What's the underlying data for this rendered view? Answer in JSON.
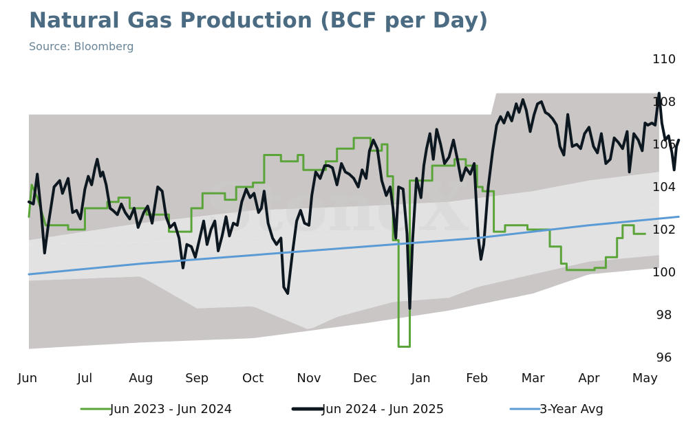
{
  "header": {
    "title": "Natural Gas Production (BCF per Day)",
    "subtitle": "Source: Bloomberg"
  },
  "colors": {
    "series_2023": "#5aa43a",
    "series_2024": "#0d1720",
    "avg": "#5b9bd5",
    "band_outer": "#c9c6c5",
    "band_inner": "#e3e2e2",
    "watermark": "#d5d5d5"
  },
  "watermark": "StoneX",
  "chart_data": {
    "type": "line",
    "title": "Natural Gas Production (BCF per Day)",
    "subtitle": "Source: Bloomberg",
    "y_axis_side": "right",
    "ylim": [
      96,
      110
    ],
    "yticks": [
      96,
      98,
      100,
      102,
      104,
      106,
      108,
      110
    ],
    "x_ticks": [
      "Jun",
      "Jul",
      "Aug",
      "Sep",
      "Oct",
      "Nov",
      "Dec",
      "Jan",
      "Feb",
      "Mar",
      "Apr",
      "May"
    ],
    "x_range": [
      0,
      11.25
    ],
    "legend_position": "bottom",
    "grid": false,
    "legend": [
      "Jun 2023 - Jun 2024",
      "Jun 2024 - Jun 2025",
      "3-Year Avg"
    ],
    "bands": {
      "outer_upper": [
        [
          0,
          107.4
        ],
        [
          8.3,
          107.4
        ],
        [
          8.3,
          108.4
        ],
        [
          11.25,
          108.4
        ]
      ],
      "inner_upper": [
        [
          0,
          101.5
        ],
        [
          2,
          102.3
        ],
        [
          4,
          102.9
        ],
        [
          6,
          103.1
        ],
        [
          7.5,
          103.3
        ],
        [
          9,
          103.8
        ],
        [
          10,
          104.3
        ],
        [
          11.25,
          104.7
        ]
      ],
      "inner_lower": [
        [
          0,
          101.3
        ],
        [
          2,
          101.4
        ],
        [
          4,
          101.6
        ],
        [
          6,
          101.8
        ],
        [
          7.5,
          102.0
        ],
        [
          9,
          102.4
        ],
        [
          10,
          102.8
        ],
        [
          11.25,
          103.0
        ]
      ],
      "outer_lower": [
        [
          0,
          99.6
        ],
        [
          2,
          99.8
        ],
        [
          3,
          98.3
        ],
        [
          4,
          98.4
        ],
        [
          5,
          97.3
        ],
        [
          5.5,
          97.9
        ],
        [
          6.5,
          98.6
        ],
        [
          7.5,
          98.8
        ],
        [
          8,
          99.3
        ],
        [
          8.5,
          99.6
        ],
        [
          10,
          100.5
        ],
        [
          11.25,
          100.8
        ]
      ],
      "bottom": [
        [
          0,
          96.4
        ],
        [
          2,
          96.7
        ],
        [
          4,
          96.9
        ],
        [
          6,
          97.6
        ],
        [
          7.5,
          98.2
        ],
        [
          9,
          99.0
        ],
        [
          10,
          99.9
        ],
        [
          11.25,
          100.2
        ]
      ]
    },
    "series": [
      {
        "name": "Jun 2023 - Jun 2024",
        "color": "#5aa43a",
        "points": [
          [
            0,
            102.6
          ],
          [
            0.05,
            104.1
          ],
          [
            0.15,
            103.5
          ],
          [
            0.3,
            102.2
          ],
          [
            0.7,
            102.2
          ],
          [
            0.7,
            102.0
          ],
          [
            1,
            102.0
          ],
          [
            1,
            103.0
          ],
          [
            1.4,
            103.0
          ],
          [
            1.4,
            103.3
          ],
          [
            1.6,
            103.3
          ],
          [
            1.6,
            103.5
          ],
          [
            1.8,
            103.5
          ],
          [
            1.8,
            103.0
          ],
          [
            2.1,
            103.0
          ],
          [
            2.1,
            102.7
          ],
          [
            2.5,
            102.7
          ],
          [
            2.5,
            101.9
          ],
          [
            2.9,
            101.9
          ],
          [
            2.9,
            103.0
          ],
          [
            3.1,
            103.0
          ],
          [
            3.1,
            103.7
          ],
          [
            3.5,
            103.7
          ],
          [
            3.5,
            103.4
          ],
          [
            3.7,
            103.4
          ],
          [
            3.7,
            104.0
          ],
          [
            4,
            104.0
          ],
          [
            4,
            104.2
          ],
          [
            4.2,
            104.2
          ],
          [
            4.2,
            105.5
          ],
          [
            4.5,
            105.5
          ],
          [
            4.5,
            105.2
          ],
          [
            4.8,
            105.2
          ],
          [
            4.8,
            105.5
          ],
          [
            4.9,
            105.5
          ],
          [
            4.9,
            104.8
          ],
          [
            5.3,
            104.8
          ],
          [
            5.3,
            105.2
          ],
          [
            5.5,
            105.2
          ],
          [
            5.5,
            105.8
          ],
          [
            5.8,
            105.8
          ],
          [
            5.8,
            106.3
          ],
          [
            6.1,
            106.3
          ],
          [
            6.1,
            105.7
          ],
          [
            6.3,
            105.7
          ],
          [
            6.3,
            106.0
          ],
          [
            6.4,
            106.0
          ],
          [
            6.4,
            104.5
          ],
          [
            6.5,
            104.5
          ],
          [
            6.5,
            101.5
          ],
          [
            6.6,
            101.5
          ],
          [
            6.6,
            96.5
          ],
          [
            6.8,
            96.5
          ],
          [
            6.8,
            104.3
          ],
          [
            7.2,
            104.3
          ],
          [
            7.2,
            105.0
          ],
          [
            7.6,
            105.0
          ],
          [
            7.6,
            105.3
          ],
          [
            7.8,
            105.3
          ],
          [
            7.8,
            105.0
          ],
          [
            8,
            105.0
          ],
          [
            8,
            104.0
          ],
          [
            8.1,
            104.0
          ],
          [
            8.1,
            103.8
          ],
          [
            8.3,
            103.8
          ],
          [
            8.3,
            101.9
          ],
          [
            8.5,
            101.9
          ],
          [
            8.5,
            102.2
          ],
          [
            8.9,
            102.2
          ],
          [
            8.9,
            102.0
          ],
          [
            9.3,
            102.0
          ],
          [
            9.3,
            101.2
          ],
          [
            9.5,
            101.2
          ],
          [
            9.5,
            100.4
          ],
          [
            9.6,
            100.4
          ],
          [
            9.6,
            100.1
          ],
          [
            10.1,
            100.1
          ],
          [
            10.1,
            100.2
          ],
          [
            10.3,
            100.2
          ],
          [
            10.3,
            100.7
          ],
          [
            10.5,
            100.7
          ],
          [
            10.5,
            101.6
          ],
          [
            10.6,
            101.6
          ],
          [
            10.6,
            102.2
          ],
          [
            10.8,
            102.2
          ],
          [
            10.8,
            101.8
          ],
          [
            11,
            101.8
          ]
        ]
      },
      {
        "name": "Jun 2024 - Jun 2025",
        "color": "#0d1720",
        "points": [
          [
            0,
            103.3
          ],
          [
            0.08,
            103.2
          ],
          [
            0.15,
            104.6
          ],
          [
            0.22,
            102.8
          ],
          [
            0.28,
            100.9
          ],
          [
            0.35,
            102.3
          ],
          [
            0.45,
            104.0
          ],
          [
            0.55,
            104.3
          ],
          [
            0.6,
            103.7
          ],
          [
            0.7,
            104.4
          ],
          [
            0.78,
            102.8
          ],
          [
            0.85,
            102.9
          ],
          [
            0.92,
            102.5
          ],
          [
            1,
            103.9
          ],
          [
            1.06,
            104.5
          ],
          [
            1.12,
            104.1
          ],
          [
            1.18,
            104.9
          ],
          [
            1.22,
            105.3
          ],
          [
            1.28,
            104.5
          ],
          [
            1.32,
            104.7
          ],
          [
            1.38,
            104.1
          ],
          [
            1.45,
            103.0
          ],
          [
            1.5,
            102.9
          ],
          [
            1.58,
            102.7
          ],
          [
            1.65,
            103.2
          ],
          [
            1.72,
            102.8
          ],
          [
            1.8,
            102.5
          ],
          [
            1.88,
            103.0
          ],
          [
            1.95,
            102.1
          ],
          [
            2.05,
            102.8
          ],
          [
            2.12,
            103.1
          ],
          [
            2.2,
            102.3
          ],
          [
            2.3,
            104.0
          ],
          [
            2.38,
            103.8
          ],
          [
            2.45,
            102.6
          ],
          [
            2.52,
            102.1
          ],
          [
            2.6,
            102.3
          ],
          [
            2.68,
            101.6
          ],
          [
            2.75,
            100.2
          ],
          [
            2.82,
            101.3
          ],
          [
            2.9,
            101.2
          ],
          [
            2.97,
            100.7
          ],
          [
            3.05,
            101.6
          ],
          [
            3.12,
            102.4
          ],
          [
            3.18,
            101.3
          ],
          [
            3.25,
            102.0
          ],
          [
            3.32,
            102.4
          ],
          [
            3.38,
            101.0
          ],
          [
            3.45,
            101.7
          ],
          [
            3.52,
            102.6
          ],
          [
            3.58,
            101.7
          ],
          [
            3.65,
            102.3
          ],
          [
            3.72,
            102.2
          ],
          [
            3.8,
            103.3
          ],
          [
            3.88,
            103.9
          ],
          [
            3.95,
            103.5
          ],
          [
            4.02,
            103.7
          ],
          [
            4.1,
            102.8
          ],
          [
            4.15,
            103.0
          ],
          [
            4.2,
            103.8
          ],
          [
            4.27,
            102.3
          ],
          [
            4.35,
            101.6
          ],
          [
            4.42,
            101.3
          ],
          [
            4.5,
            101.6
          ],
          [
            4.55,
            99.3
          ],
          [
            4.62,
            99.0
          ],
          [
            4.7,
            100.8
          ],
          [
            4.78,
            102.4
          ],
          [
            4.85,
            102.9
          ],
          [
            4.92,
            102.3
          ],
          [
            5,
            102.2
          ],
          [
            5.05,
            103.6
          ],
          [
            5.12,
            104.7
          ],
          [
            5.2,
            104.4
          ],
          [
            5.28,
            105.0
          ],
          [
            5.35,
            105.0
          ],
          [
            5.42,
            104.9
          ],
          [
            5.5,
            104.1
          ],
          [
            5.58,
            105.1
          ],
          [
            5.65,
            104.7
          ],
          [
            5.72,
            104.6
          ],
          [
            5.8,
            104.4
          ],
          [
            5.88,
            104.0
          ],
          [
            5.95,
            104.8
          ],
          [
            6.02,
            104.4
          ],
          [
            6.08,
            105.7
          ],
          [
            6.15,
            106.2
          ],
          [
            6.22,
            105.8
          ],
          [
            6.3,
            104.3
          ],
          [
            6.38,
            103.6
          ],
          [
            6.45,
            104.0
          ],
          [
            6.5,
            103.0
          ],
          [
            6.55,
            101.6
          ],
          [
            6.6,
            104.0
          ],
          [
            6.68,
            103.9
          ],
          [
            6.75,
            101.8
          ],
          [
            6.8,
            98.3
          ],
          [
            6.85,
            101.5
          ],
          [
            6.92,
            104.4
          ],
          [
            7,
            103.5
          ],
          [
            7.05,
            105.0
          ],
          [
            7.1,
            105.8
          ],
          [
            7.16,
            106.5
          ],
          [
            7.22,
            105.3
          ],
          [
            7.28,
            106.7
          ],
          [
            7.35,
            106.0
          ],
          [
            7.42,
            105.1
          ],
          [
            7.5,
            105.4
          ],
          [
            7.58,
            106.2
          ],
          [
            7.65,
            105.3
          ],
          [
            7.72,
            104.3
          ],
          [
            7.8,
            104.9
          ],
          [
            7.88,
            104.6
          ],
          [
            7.95,
            105.1
          ],
          [
            8.02,
            101.7
          ],
          [
            8.07,
            100.6
          ],
          [
            8.12,
            101.3
          ],
          [
            8.2,
            104.0
          ],
          [
            8.28,
            105.7
          ],
          [
            8.35,
            106.9
          ],
          [
            8.42,
            107.3
          ],
          [
            8.48,
            107.0
          ],
          [
            8.55,
            107.5
          ],
          [
            8.62,
            107.1
          ],
          [
            8.7,
            107.9
          ],
          [
            8.75,
            107.5
          ],
          [
            8.82,
            108.1
          ],
          [
            8.88,
            107.6
          ],
          [
            8.95,
            106.6
          ],
          [
            9.02,
            107.4
          ],
          [
            9.08,
            107.9
          ],
          [
            9.15,
            108.0
          ],
          [
            9.22,
            107.5
          ],
          [
            9.28,
            107.4
          ],
          [
            9.35,
            107.2
          ],
          [
            9.42,
            106.9
          ],
          [
            9.48,
            105.9
          ],
          [
            9.55,
            105.5
          ],
          [
            9.62,
            107.4
          ],
          [
            9.7,
            105.9
          ],
          [
            9.78,
            106.0
          ],
          [
            9.85,
            105.8
          ],
          [
            9.92,
            106.5
          ],
          [
            10,
            106.8
          ],
          [
            10.08,
            105.9
          ],
          [
            10.15,
            105.6
          ],
          [
            10.22,
            106.5
          ],
          [
            10.3,
            105.1
          ],
          [
            10.38,
            105.3
          ],
          [
            10.45,
            106.3
          ],
          [
            10.52,
            106.1
          ],
          [
            10.6,
            105.8
          ],
          [
            10.68,
            106.6
          ],
          [
            10.72,
            104.7
          ],
          [
            10.8,
            106.5
          ],
          [
            10.88,
            106.2
          ],
          [
            10.95,
            105.7
          ],
          [
            11,
            107.0
          ],
          [
            11.05,
            106.9
          ],
          [
            11.12,
            107.0
          ],
          [
            11.18,
            106.9
          ],
          [
            11.25,
            108.4
          ],
          [
            11.3,
            107.0
          ],
          [
            11.36,
            106.2
          ],
          [
            11.42,
            106.4
          ],
          [
            11.48,
            105.6
          ],
          [
            11.52,
            104.8
          ],
          [
            11.56,
            105.9
          ],
          [
            11.6,
            106.2
          ]
        ]
      },
      {
        "name": "3-Year Avg",
        "color": "#5b9bd5",
        "points": [
          [
            0,
            99.9
          ],
          [
            2,
            100.4
          ],
          [
            4,
            100.8
          ],
          [
            6,
            101.2
          ],
          [
            8,
            101.6
          ],
          [
            10,
            102.2
          ],
          [
            11.6,
            102.6
          ]
        ]
      }
    ]
  }
}
